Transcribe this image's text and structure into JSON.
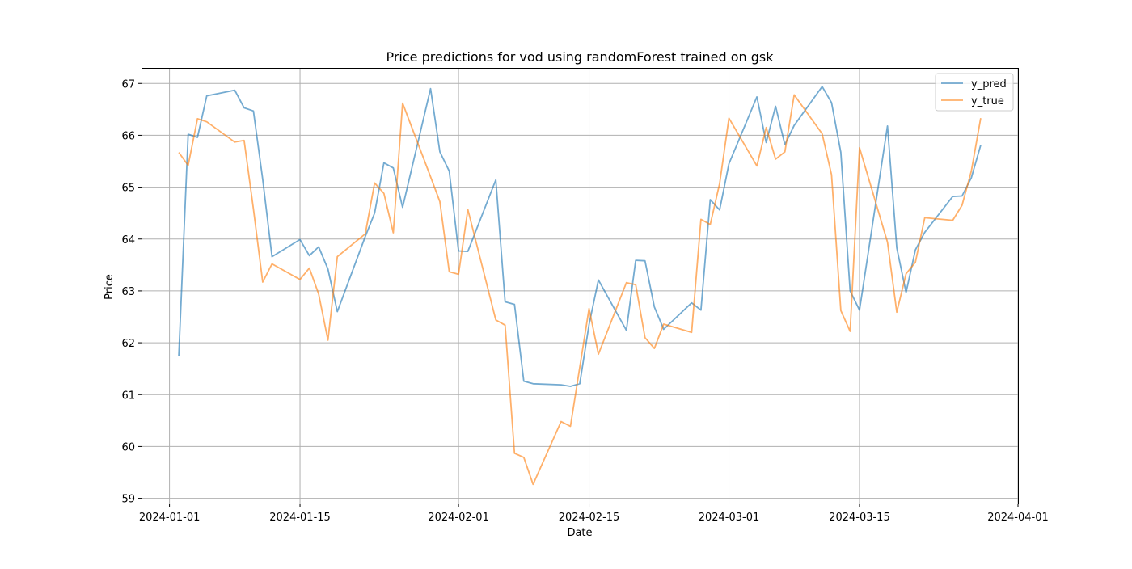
{
  "chart_data": {
    "type": "line",
    "title": "Price predictions for vod using randomForest trained on gsk",
    "xlabel": "Date",
    "ylabel": "Price",
    "ylim": [
      58.9,
      67.3
    ],
    "xlim": [
      "2023-12-29",
      "2024-04-01"
    ],
    "grid": true,
    "legend_position": "top-right",
    "x_ticks": [
      "2024-01-01",
      "2024-01-15",
      "2024-02-01",
      "2024-02-15",
      "2024-03-01",
      "2024-03-15",
      "2024-04-01"
    ],
    "y_ticks": [
      59,
      60,
      61,
      62,
      63,
      64,
      65,
      66,
      67
    ],
    "series": [
      {
        "name": "y_pred",
        "color": "#1f77b4",
        "points": [
          [
            "2024-01-02",
            61.75
          ],
          [
            "2024-01-03",
            66.02
          ],
          [
            "2024-01-04",
            65.96
          ],
          [
            "2024-01-05",
            66.76
          ],
          [
            "2024-01-08",
            66.87
          ],
          [
            "2024-01-09",
            66.53
          ],
          [
            "2024-01-10",
            66.47
          ],
          [
            "2024-01-11",
            65.15
          ],
          [
            "2024-01-12",
            63.66
          ],
          [
            "2024-01-15",
            63.99
          ],
          [
            "2024-01-16",
            63.68
          ],
          [
            "2024-01-17",
            63.85
          ],
          [
            "2024-01-18",
            63.42
          ],
          [
            "2024-01-19",
            62.6
          ],
          [
            "2024-01-22",
            64.05
          ],
          [
            "2024-01-23",
            64.5
          ],
          [
            "2024-01-24",
            65.47
          ],
          [
            "2024-01-25",
            65.37
          ],
          [
            "2024-01-26",
            64.61
          ],
          [
            "2024-01-29",
            66.9
          ],
          [
            "2024-01-30",
            65.68
          ],
          [
            "2024-01-31",
            65.31
          ],
          [
            "2024-02-01",
            63.77
          ],
          [
            "2024-02-02",
            63.76
          ],
          [
            "2024-02-05",
            65.14
          ],
          [
            "2024-02-06",
            62.79
          ],
          [
            "2024-02-07",
            62.74
          ],
          [
            "2024-02-08",
            61.26
          ],
          [
            "2024-02-09",
            61.21
          ],
          [
            "2024-02-12",
            61.19
          ],
          [
            "2024-02-13",
            61.16
          ],
          [
            "2024-02-14",
            61.21
          ],
          [
            "2024-02-15",
            62.35
          ],
          [
            "2024-02-16",
            63.21
          ],
          [
            "2024-02-19",
            62.24
          ],
          [
            "2024-02-20",
            63.59
          ],
          [
            "2024-02-21",
            63.58
          ],
          [
            "2024-02-22",
            62.69
          ],
          [
            "2024-02-23",
            62.26
          ],
          [
            "2024-02-26",
            62.77
          ],
          [
            "2024-02-27",
            62.63
          ],
          [
            "2024-02-28",
            64.76
          ],
          [
            "2024-02-29",
            64.56
          ],
          [
            "2024-03-01",
            65.45
          ],
          [
            "2024-03-04",
            66.74
          ],
          [
            "2024-03-05",
            65.86
          ],
          [
            "2024-03-06",
            66.56
          ],
          [
            "2024-03-07",
            65.82
          ],
          [
            "2024-03-08",
            66.19
          ],
          [
            "2024-03-11",
            66.94
          ],
          [
            "2024-03-12",
            66.63
          ],
          [
            "2024-03-13",
            65.67
          ],
          [
            "2024-03-14",
            63.0
          ],
          [
            "2024-03-15",
            62.63
          ],
          [
            "2024-03-18",
            66.18
          ],
          [
            "2024-03-19",
            63.83
          ],
          [
            "2024-03-20",
            62.97
          ],
          [
            "2024-03-21",
            63.79
          ],
          [
            "2024-03-22",
            64.13
          ],
          [
            "2024-03-25",
            64.82
          ],
          [
            "2024-03-26",
            64.83
          ],
          [
            "2024-03-27",
            65.18
          ],
          [
            "2024-03-28",
            65.81
          ]
        ]
      },
      {
        "name": "y_true",
        "color": "#ff7f0e",
        "points": [
          [
            "2024-01-02",
            65.67
          ],
          [
            "2024-01-03",
            65.42
          ],
          [
            "2024-01-04",
            66.32
          ],
          [
            "2024-01-05",
            66.26
          ],
          [
            "2024-01-08",
            65.87
          ],
          [
            "2024-01-09",
            65.9
          ],
          [
            "2024-01-10",
            64.58
          ],
          [
            "2024-01-11",
            63.17
          ],
          [
            "2024-01-12",
            63.52
          ],
          [
            "2024-01-15",
            63.22
          ],
          [
            "2024-01-16",
            63.44
          ],
          [
            "2024-01-17",
            62.94
          ],
          [
            "2024-01-18",
            62.05
          ],
          [
            "2024-01-19",
            63.66
          ],
          [
            "2024-01-22",
            64.1
          ],
          [
            "2024-01-23",
            65.08
          ],
          [
            "2024-01-24",
            64.88
          ],
          [
            "2024-01-25",
            64.12
          ],
          [
            "2024-01-26",
            66.62
          ],
          [
            "2024-01-29",
            65.2
          ],
          [
            "2024-01-30",
            64.72
          ],
          [
            "2024-01-31",
            63.37
          ],
          [
            "2024-02-01",
            63.32
          ],
          [
            "2024-02-02",
            64.57
          ],
          [
            "2024-02-05",
            62.44
          ],
          [
            "2024-02-06",
            62.34
          ],
          [
            "2024-02-07",
            59.87
          ],
          [
            "2024-02-08",
            59.79
          ],
          [
            "2024-02-09",
            59.27
          ],
          [
            "2024-02-12",
            60.48
          ],
          [
            "2024-02-13",
            60.39
          ],
          [
            "2024-02-15",
            62.66
          ],
          [
            "2024-02-16",
            61.78
          ],
          [
            "2024-02-19",
            63.16
          ],
          [
            "2024-02-20",
            63.12
          ],
          [
            "2024-02-21",
            62.1
          ],
          [
            "2024-02-22",
            61.89
          ],
          [
            "2024-02-23",
            62.36
          ],
          [
            "2024-02-26",
            62.2
          ],
          [
            "2024-02-27",
            64.38
          ],
          [
            "2024-02-28",
            64.28
          ],
          [
            "2024-02-29",
            65.07
          ],
          [
            "2024-03-01",
            66.33
          ],
          [
            "2024-03-04",
            65.41
          ],
          [
            "2024-03-05",
            66.15
          ],
          [
            "2024-03-06",
            65.54
          ],
          [
            "2024-03-07",
            65.68
          ],
          [
            "2024-03-08",
            66.78
          ],
          [
            "2024-03-11",
            66.03
          ],
          [
            "2024-03-12",
            65.24
          ],
          [
            "2024-03-13",
            62.62
          ],
          [
            "2024-03-14",
            62.22
          ],
          [
            "2024-03-15",
            65.76
          ],
          [
            "2024-03-18",
            63.94
          ],
          [
            "2024-03-19",
            62.59
          ],
          [
            "2024-03-20",
            63.33
          ],
          [
            "2024-03-21",
            63.55
          ],
          [
            "2024-03-22",
            64.41
          ],
          [
            "2024-03-25",
            64.36
          ],
          [
            "2024-03-26",
            64.65
          ],
          [
            "2024-03-27",
            65.31
          ],
          [
            "2024-03-28",
            66.33
          ]
        ]
      }
    ]
  }
}
